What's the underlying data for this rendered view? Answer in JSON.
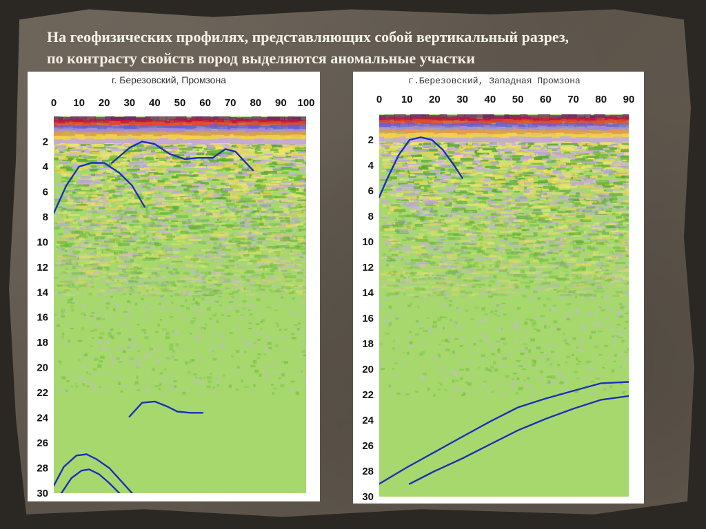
{
  "slide": {
    "heading_line1": "На геофизических профилях, представляющих собой вертикальный разрез,",
    "heading_line2": "по контрасту свойств пород выделяются аномальные участки"
  },
  "colors": {
    "background_green": "#a6d86e",
    "anomaly_line": "#1b2fb8",
    "frame": "#ffffff"
  },
  "chart_data": [
    {
      "type": "heatmap",
      "title": "г. Березовский, Промзона",
      "x_ticks": [
        0,
        10,
        20,
        30,
        40,
        50,
        60,
        70,
        80,
        90,
        100
      ],
      "y_ticks": [
        2,
        4,
        6,
        8,
        10,
        12,
        14,
        16,
        18,
        20,
        22,
        24,
        26,
        28,
        30
      ],
      "xlim": [
        0,
        100
      ],
      "ylim": [
        0,
        30
      ],
      "y_inverted": true,
      "anomaly_lines": [
        {
          "points": [
            [
              0,
              7.7
            ],
            [
              5,
              5.5
            ],
            [
              10,
              4.0
            ],
            [
              15,
              3.7
            ],
            [
              20,
              3.7
            ],
            [
              26,
              4.5
            ],
            [
              31,
              5.5
            ],
            [
              36,
              7.2
            ]
          ]
        },
        {
          "points": [
            [
              23,
              3.7
            ],
            [
              30,
              2.5
            ],
            [
              35,
              2.0
            ],
            [
              40,
              2.2
            ],
            [
              46,
              3.0
            ],
            [
              52,
              3.4
            ],
            [
              57,
              3.3
            ],
            [
              63,
              3.3
            ],
            [
              68,
              2.6
            ],
            [
              72,
              2.8
            ],
            [
              79,
              4.3
            ]
          ]
        },
        {
          "points": [
            [
              30,
              23.9
            ],
            [
              35,
              22.8
            ],
            [
              40,
              22.7
            ],
            [
              45,
              23.1
            ],
            [
              49,
              23.5
            ],
            [
              54,
              23.6
            ],
            [
              59,
              23.6
            ]
          ]
        },
        {
          "points": [
            [
              0,
              29.4
            ],
            [
              4,
              27.9
            ],
            [
              9,
              27.0
            ],
            [
              13,
              26.9
            ],
            [
              17,
              27.3
            ],
            [
              22,
              28.0
            ],
            [
              27,
              29.1
            ],
            [
              31,
              30.0
            ]
          ]
        },
        {
          "points": [
            [
              3,
              30.0
            ],
            [
              7,
              28.8
            ],
            [
              11,
              28.2
            ],
            [
              14,
              28.1
            ],
            [
              18,
              28.5
            ],
            [
              22,
              29.2
            ],
            [
              26,
              30.0
            ]
          ]
        }
      ]
    },
    {
      "type": "heatmap",
      "title": "г.Березовский, Западная Промзона",
      "x_ticks": [
        0,
        10,
        20,
        30,
        40,
        50,
        60,
        70,
        80,
        90
      ],
      "y_ticks": [
        2,
        4,
        6,
        8,
        10,
        12,
        14,
        16,
        18,
        20,
        22,
        24,
        26,
        28,
        30
      ],
      "xlim": [
        0,
        90
      ],
      "ylim": [
        0,
        30
      ],
      "y_inverted": true,
      "anomaly_lines": [
        {
          "points": [
            [
              0,
              6.5
            ],
            [
              3,
              5.0
            ],
            [
              7,
              3.2
            ],
            [
              11,
              2.0
            ],
            [
              15,
              1.8
            ],
            [
              19,
              2.0
            ],
            [
              23,
              2.8
            ],
            [
              27,
              4.0
            ],
            [
              30,
              5.0
            ]
          ]
        },
        {
          "points": [
            [
              0,
              29.0
            ],
            [
              10,
              27.7
            ],
            [
              20,
              26.5
            ],
            [
              30,
              25.3
            ],
            [
              40,
              24.1
            ],
            [
              50,
              23.0
            ],
            [
              60,
              22.3
            ],
            [
              70,
              21.7
            ],
            [
              80,
              21.1
            ],
            [
              90,
              21.0
            ]
          ]
        },
        {
          "points": [
            [
              11,
              29.0
            ],
            [
              20,
              28.0
            ],
            [
              30,
              27.0
            ],
            [
              40,
              25.9
            ],
            [
              50,
              24.8
            ],
            [
              60,
              23.9
            ],
            [
              70,
              23.1
            ],
            [
              80,
              22.4
            ],
            [
              90,
              22.1
            ]
          ]
        }
      ]
    }
  ]
}
